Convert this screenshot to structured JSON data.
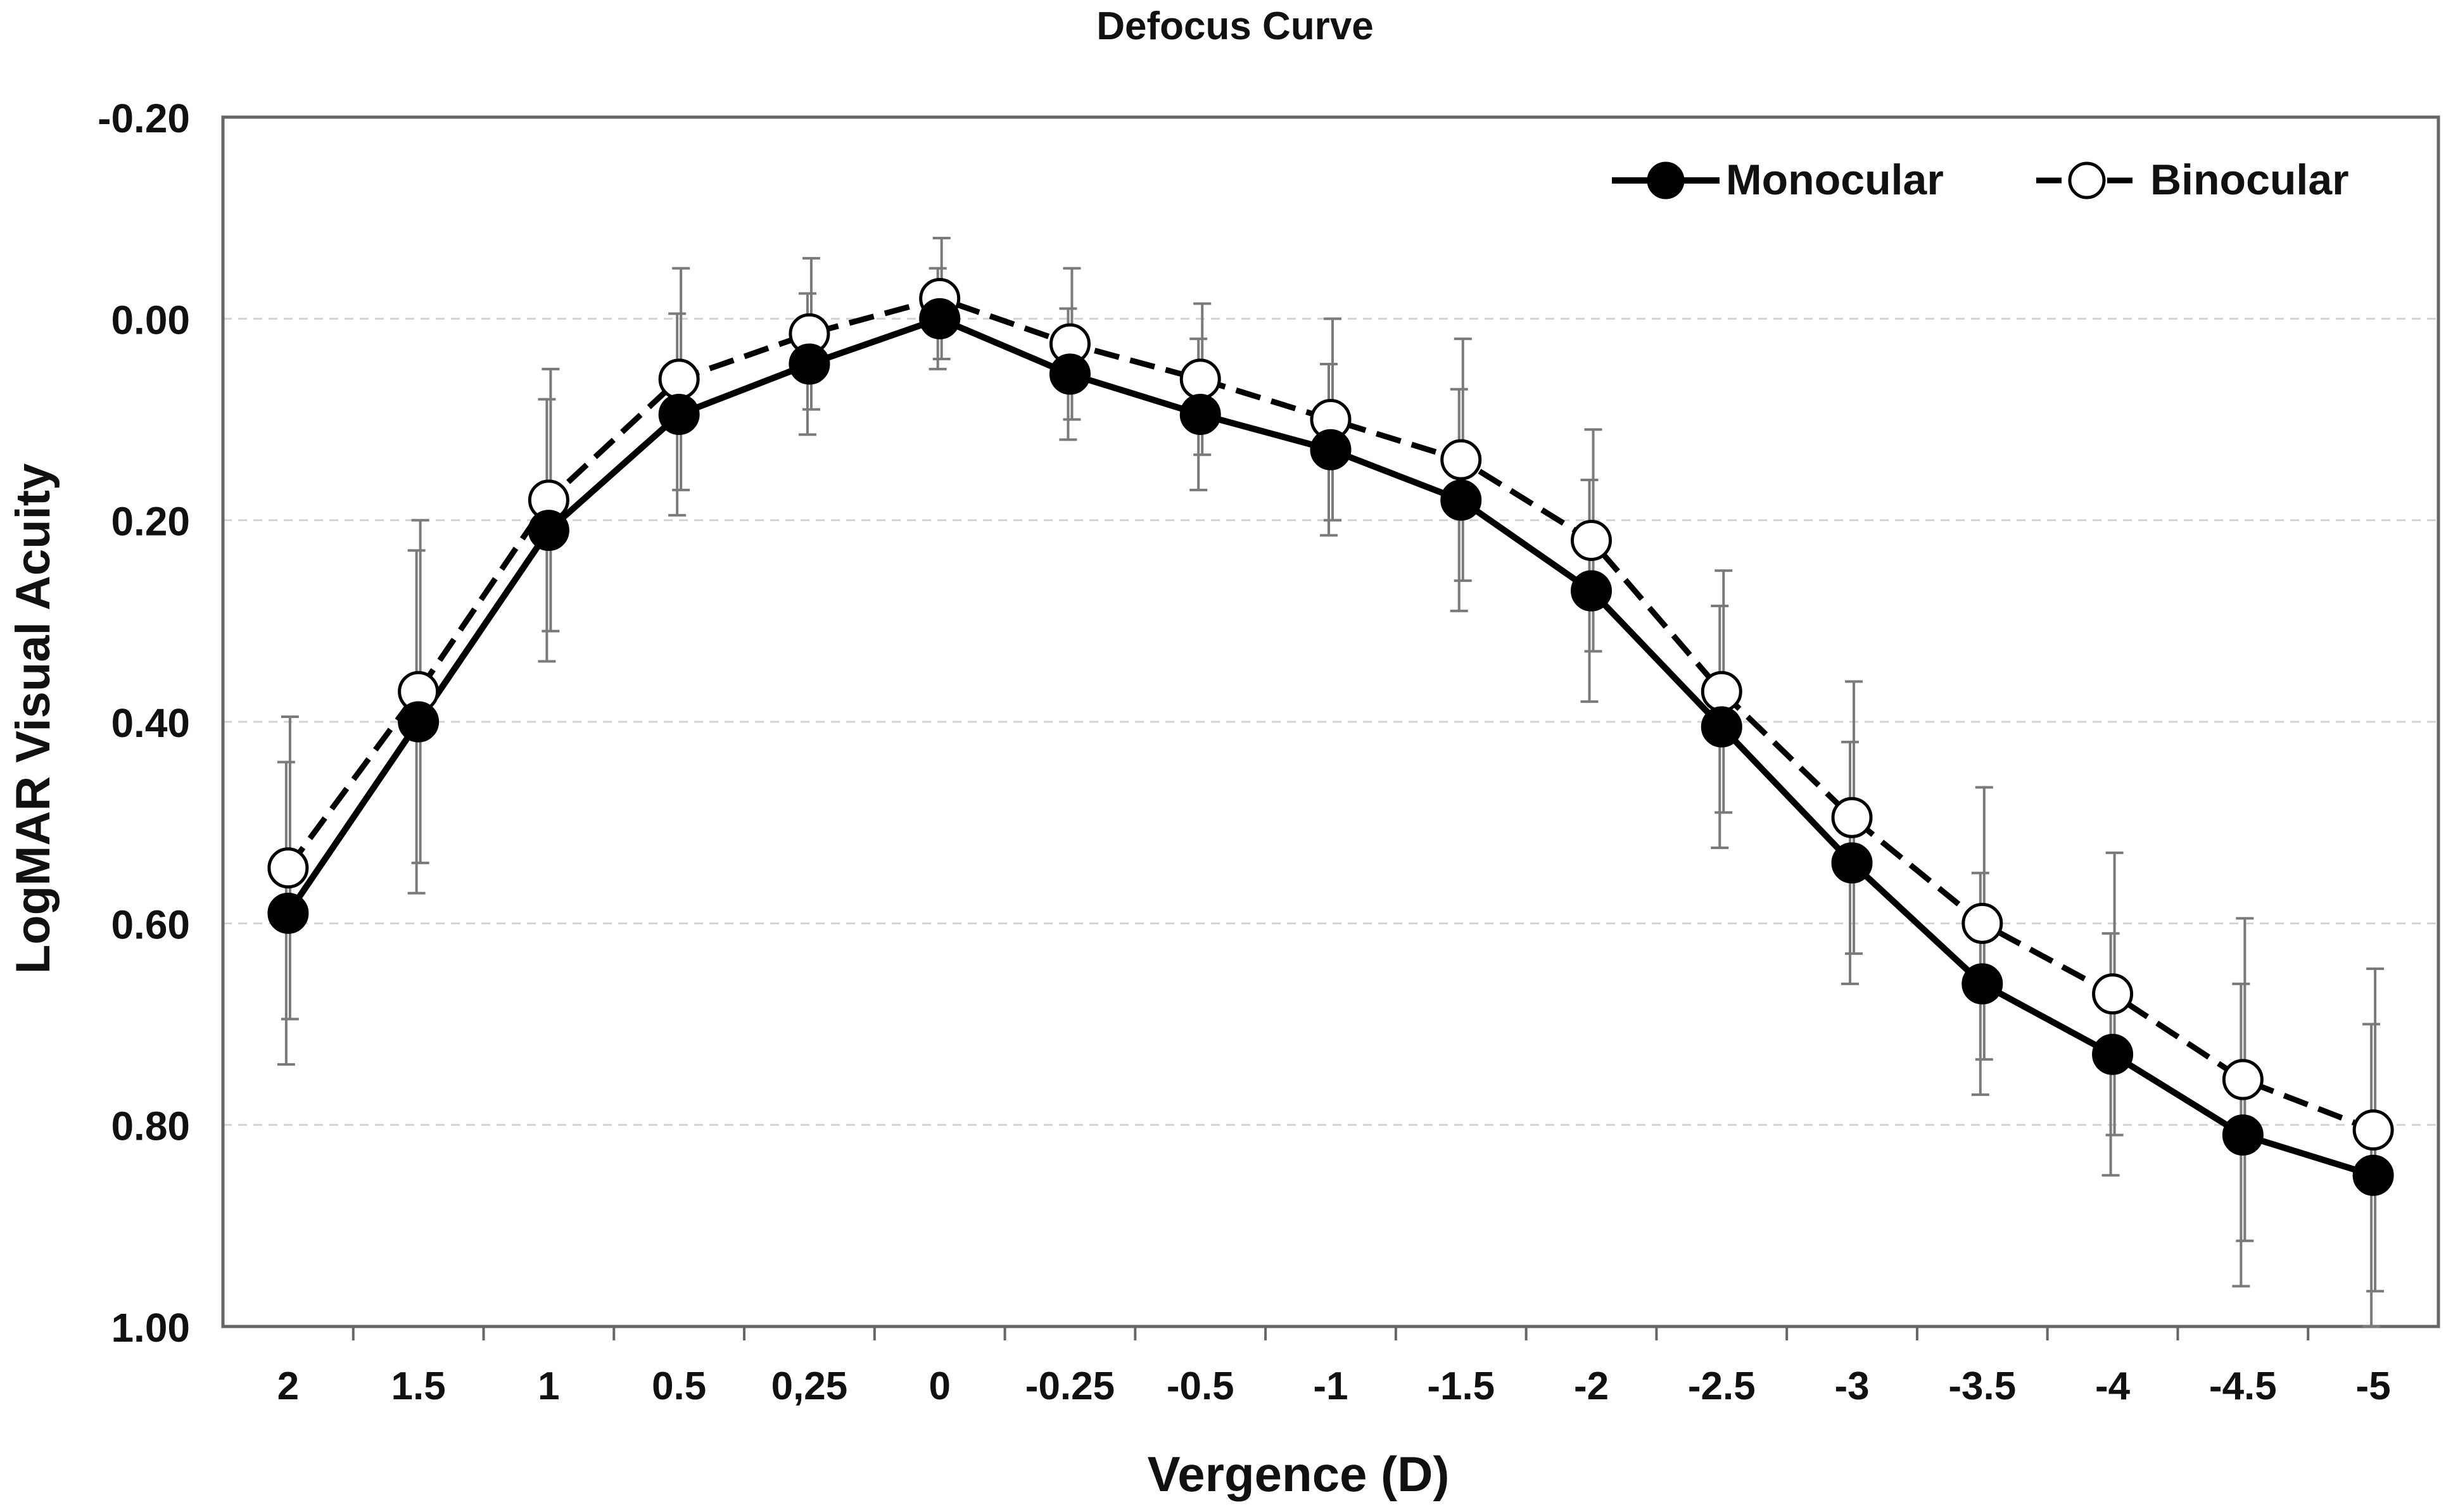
{
  "chart_data": {
    "type": "line",
    "title": "Defocus Curve",
    "xlabel": "Vergence (D)",
    "ylabel": "LogMAR Visual Acuity",
    "categories": [
      "2",
      "1.5",
      "1",
      "0.5",
      "0,25",
      "0",
      "-0.25",
      "-0.5",
      "-1",
      "-1.5",
      "-2",
      "-2.5",
      "-3",
      "-3.5",
      "-4",
      "-4.5",
      "-5"
    ],
    "ylim": [
      -0.2,
      1.0
    ],
    "y_inverted": true,
    "yticks": [
      -0.2,
      0.0,
      0.2,
      0.4,
      0.6,
      0.8,
      1.0
    ],
    "ytick_labels": [
      "-0.20",
      "0.00",
      "0.20",
      "0.40",
      "0.60",
      "0.80",
      "1.00"
    ],
    "grid": "horizontal dashed",
    "legend_position": "top-right",
    "series": [
      {
        "name": "Monocular",
        "marker": "filled circle",
        "line": "solid",
        "color": "#000000",
        "values": [
          0.59,
          0.4,
          0.21,
          0.095,
          0.045,
          0.0,
          0.055,
          0.095,
          0.13,
          0.18,
          0.27,
          0.405,
          0.54,
          0.66,
          0.73,
          0.81,
          0.85
        ],
        "errors": [
          0.15,
          0.17,
          0.13,
          0.1,
          0.07,
          0.05,
          0.065,
          0.075,
          0.085,
          0.11,
          0.11,
          0.12,
          0.12,
          0.11,
          0.12,
          0.15,
          0.15
        ]
      },
      {
        "name": "Binocular",
        "marker": "open circle",
        "line": "dashed",
        "color": "#000000",
        "values": [
          0.545,
          0.37,
          0.18,
          0.06,
          0.015,
          -0.02,
          0.025,
          0.06,
          0.1,
          0.14,
          0.22,
          0.37,
          0.495,
          0.6,
          0.67,
          0.755,
          0.805
        ],
        "errors": [
          0.15,
          0.17,
          0.13,
          0.11,
          0.075,
          0.06,
          0.075,
          0.075,
          0.1,
          0.12,
          0.11,
          0.12,
          0.135,
          0.135,
          0.14,
          0.16,
          0.16
        ]
      }
    ]
  }
}
